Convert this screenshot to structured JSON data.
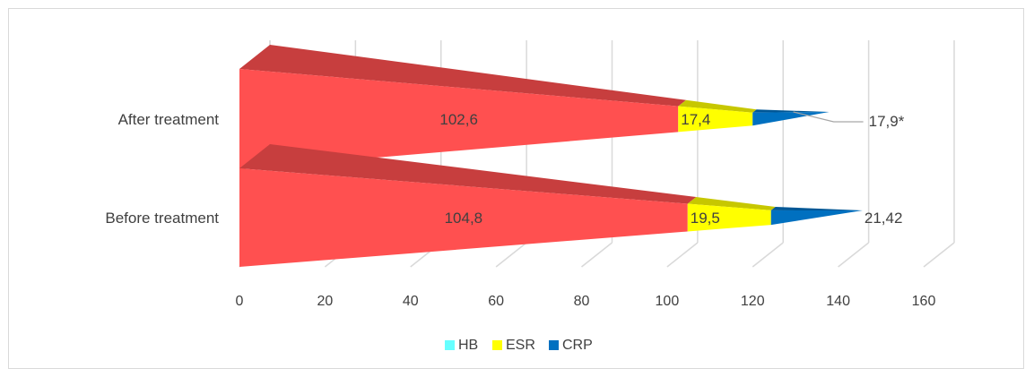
{
  "chart_data": {
    "type": "bar",
    "orientation": "horizontal",
    "stacked": true,
    "style": "3d-cone",
    "categories": [
      "Before treatment",
      "After treatment"
    ],
    "series": [
      {
        "name": "HB",
        "values": [
          104.8,
          102.6
        ],
        "color": "#ff5050",
        "legend_color": "#66ffff",
        "labels": [
          "104,8",
          "102,6"
        ]
      },
      {
        "name": "ESR",
        "values": [
          19.5,
          17.4
        ],
        "color": "#ffff00",
        "legend_color": "#ffff00",
        "labels": [
          "19,5",
          "17,4"
        ]
      },
      {
        "name": "CRP",
        "values": [
          21.42,
          17.9
        ],
        "color": "#0070c0",
        "legend_color": "#0070c0",
        "labels": [
          "21,42",
          "17,9*"
        ]
      }
    ],
    "xlim": [
      0,
      160
    ],
    "xticks": [
      "0",
      "20",
      "40",
      "60",
      "80",
      "100",
      "120",
      "140",
      "160"
    ],
    "grid": true,
    "legend_position": "bottom"
  }
}
